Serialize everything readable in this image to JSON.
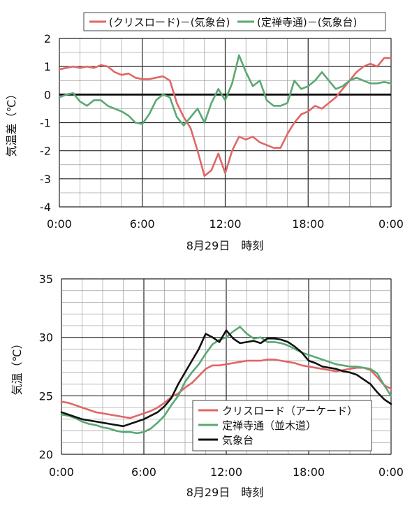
{
  "chart_data": [
    {
      "type": "line",
      "xlabel": "8月29日　時刻",
      "ylabel": "気温差（℃）",
      "x_tick_labels": [
        "0:00",
        "6:00",
        "12:00",
        "18:00",
        "0:00"
      ],
      "xlim": [
        0,
        24
      ],
      "ylim": [
        -4,
        2
      ],
      "y_ticks": [
        -4,
        -3,
        -2,
        -1,
        0,
        1,
        2
      ],
      "grid": true,
      "legend_position": "top",
      "series": [
        {
          "name": "(クリスロード)－(気象台)",
          "color": "#e06666",
          "x": [
            0,
            0.5,
            1,
            1.5,
            2,
            2.5,
            3,
            3.5,
            4,
            4.5,
            5,
            5.5,
            6,
            6.5,
            7,
            7.5,
            8,
            8.5,
            9,
            9.5,
            10,
            10.5,
            11,
            11.5,
            12,
            12.5,
            13,
            13.5,
            14,
            14.5,
            15,
            15.5,
            16,
            16.5,
            17,
            17.5,
            18,
            18.5,
            19,
            19.5,
            20,
            20.5,
            21,
            21.5,
            22,
            22.5,
            23,
            23.5,
            24
          ],
          "values": [
            0.9,
            0.95,
            1.0,
            0.95,
            1.0,
            0.95,
            1.05,
            1.0,
            0.8,
            0.7,
            0.75,
            0.6,
            0.55,
            0.55,
            0.6,
            0.65,
            0.5,
            -0.3,
            -0.8,
            -1.2,
            -2.0,
            -2.9,
            -2.7,
            -2.1,
            -2.8,
            -2.0,
            -1.5,
            -1.6,
            -1.5,
            -1.7,
            -1.8,
            -1.9,
            -1.9,
            -1.4,
            -1.0,
            -0.7,
            -0.6,
            -0.4,
            -0.5,
            -0.3,
            -0.1,
            0.2,
            0.5,
            0.8,
            1.0,
            1.1,
            1.0,
            1.3,
            1.3
          ]
        },
        {
          "name": "(定禅寺通)－(気象台)",
          "color": "#5aa874",
          "x": [
            0,
            0.5,
            1,
            1.5,
            2,
            2.5,
            3,
            3.5,
            4,
            4.5,
            5,
            5.5,
            6,
            6.5,
            7,
            7.5,
            8,
            8.5,
            9,
            9.5,
            10,
            10.5,
            11,
            11.5,
            12,
            12.5,
            13,
            13.5,
            14,
            14.5,
            15,
            15.5,
            16,
            16.5,
            17,
            17.5,
            18,
            18.5,
            19,
            19.5,
            20,
            20.5,
            21,
            21.5,
            22,
            22.5,
            23,
            23.5,
            24
          ],
          "values": [
            -0.1,
            0.0,
            0.05,
            -0.25,
            -0.4,
            -0.2,
            -0.2,
            -0.4,
            -0.5,
            -0.6,
            -0.75,
            -1.0,
            -1.05,
            -0.7,
            -0.2,
            0.0,
            -0.1,
            -0.8,
            -1.1,
            -0.8,
            -0.5,
            -1.0,
            -0.3,
            0.2,
            -0.2,
            0.4,
            1.4,
            0.8,
            0.3,
            0.5,
            -0.2,
            -0.4,
            -0.4,
            -0.3,
            0.5,
            0.2,
            0.3,
            0.5,
            0.8,
            0.5,
            0.2,
            0.3,
            0.5,
            0.6,
            0.5,
            0.4,
            0.4,
            0.45,
            0.4
          ]
        }
      ]
    },
    {
      "type": "line",
      "xlabel": "8月29日　時刻",
      "ylabel": "気温（℃）",
      "x_tick_labels": [
        "0:00",
        "6:00",
        "12:00",
        "18:00",
        "0:00"
      ],
      "xlim": [
        0,
        24
      ],
      "ylim": [
        20,
        35
      ],
      "y_ticks": [
        20,
        25,
        30,
        35
      ],
      "grid": true,
      "legend_position": "bottom-right",
      "series": [
        {
          "name": "クリスロード（アーケード）",
          "color": "#e06666",
          "x": [
            0,
            0.5,
            1,
            1.5,
            2,
            2.5,
            3,
            3.5,
            4,
            4.5,
            5,
            5.5,
            6,
            6.5,
            7,
            7.5,
            8,
            8.5,
            9,
            9.5,
            10,
            10.5,
            11,
            11.5,
            12,
            12.5,
            13,
            13.5,
            14,
            14.5,
            15,
            15.5,
            16,
            16.5,
            17,
            17.5,
            18,
            18.5,
            19,
            19.5,
            20,
            20.5,
            21,
            21.5,
            22,
            22.5,
            23,
            23.5,
            24
          ],
          "values": [
            24.5,
            24.4,
            24.2,
            24.0,
            23.8,
            23.6,
            23.5,
            23.4,
            23.3,
            23.2,
            23.1,
            23.3,
            23.5,
            23.7,
            24.0,
            24.4,
            24.9,
            25.2,
            25.7,
            26.1,
            26.7,
            27.3,
            27.6,
            27.6,
            27.7,
            27.8,
            27.9,
            28.0,
            28.0,
            28.0,
            28.1,
            28.1,
            28.0,
            27.9,
            27.8,
            27.6,
            27.5,
            27.4,
            27.3,
            27.2,
            27.1,
            27.2,
            27.3,
            27.4,
            27.4,
            27.2,
            26.6,
            25.9,
            25.6
          ]
        },
        {
          "name": "定禅寺通（並木道）",
          "color": "#5aa874",
          "x": [
            0,
            0.5,
            1,
            1.5,
            2,
            2.5,
            3,
            3.5,
            4,
            4.5,
            5,
            5.5,
            6,
            6.5,
            7,
            7.5,
            8,
            8.5,
            9,
            9.5,
            10,
            10.5,
            11,
            11.5,
            12,
            12.5,
            13,
            13.5,
            14,
            14.5,
            15,
            15.5,
            16,
            16.5,
            17,
            17.5,
            18,
            18.5,
            19,
            19.5,
            20,
            20.5,
            21,
            21.5,
            22,
            22.5,
            23,
            23.5,
            24
          ],
          "values": [
            23.4,
            23.3,
            23.1,
            22.8,
            22.6,
            22.5,
            22.3,
            22.2,
            22.0,
            21.9,
            21.9,
            21.8,
            21.9,
            22.2,
            22.7,
            23.3,
            24.2,
            25.0,
            26.2,
            27.0,
            27.7,
            28.6,
            29.4,
            29.8,
            30.0,
            30.5,
            30.9,
            30.3,
            29.9,
            30.0,
            29.6,
            29.6,
            29.5,
            29.3,
            29.0,
            28.7,
            28.5,
            28.3,
            28.1,
            27.9,
            27.7,
            27.6,
            27.5,
            27.5,
            27.4,
            27.3,
            26.9,
            25.9,
            25.0
          ]
        },
        {
          "name": "気象台",
          "color": "#111111",
          "x": [
            0,
            0.5,
            1,
            1.5,
            2,
            2.5,
            3,
            3.5,
            4,
            4.5,
            5,
            5.5,
            6,
            6.5,
            7,
            7.5,
            8,
            8.5,
            9,
            9.5,
            10,
            10.5,
            11,
            11.5,
            12,
            12.5,
            13,
            13.5,
            14,
            14.5,
            15,
            15.5,
            16,
            16.5,
            17,
            17.5,
            18,
            18.5,
            19,
            19.5,
            20,
            20.5,
            21,
            21.5,
            22,
            22.5,
            23,
            23.5,
            24
          ],
          "values": [
            23.6,
            23.4,
            23.2,
            23.0,
            22.9,
            22.8,
            22.7,
            22.6,
            22.5,
            22.4,
            22.6,
            22.8,
            23.0,
            23.3,
            23.6,
            24.1,
            24.8,
            26.0,
            27.0,
            28.0,
            29.0,
            30.3,
            30.0,
            29.6,
            30.6,
            29.9,
            29.5,
            29.6,
            29.7,
            29.5,
            29.9,
            29.9,
            29.8,
            29.6,
            29.2,
            28.7,
            28.0,
            27.8,
            27.5,
            27.4,
            27.3,
            27.1,
            27.0,
            26.8,
            26.4,
            26.0,
            25.3,
            24.7,
            24.3
          ]
        }
      ]
    }
  ]
}
